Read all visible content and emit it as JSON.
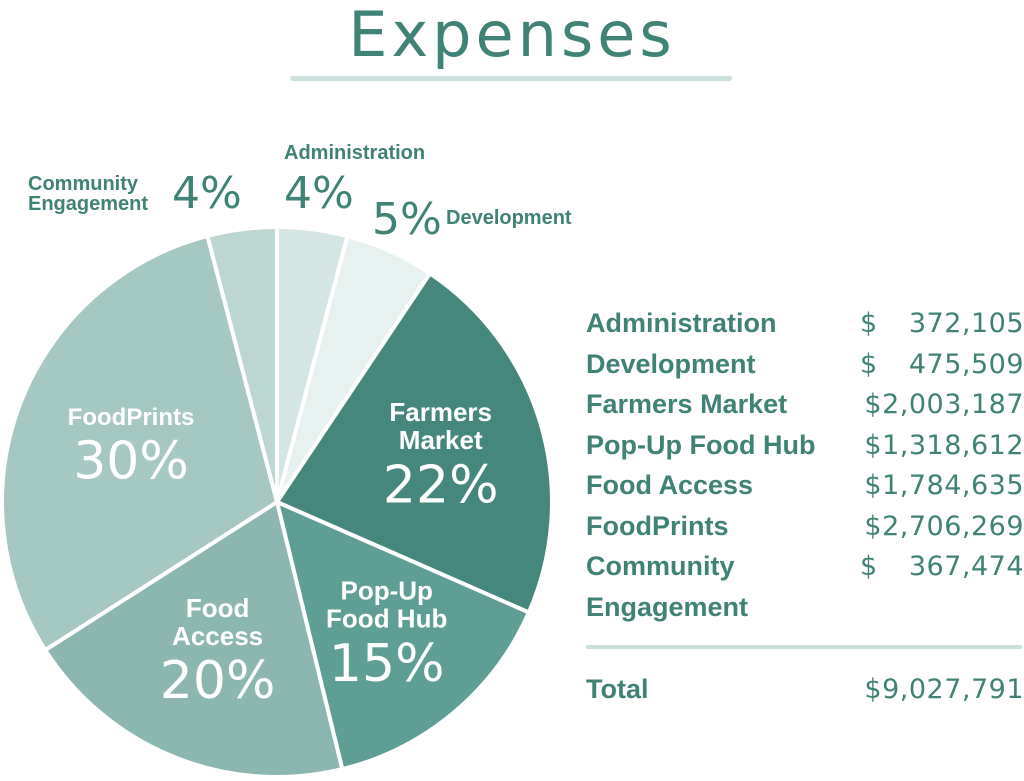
{
  "chart_data": {
    "type": "pie",
    "title": "Expenses",
    "slices": [
      {
        "name": "Administration",
        "label_lines": [
          "Administration"
        ],
        "pct_label": "4%",
        "amount": "$ 372,105",
        "amount_symbol": "$",
        "amount_number": "372,105",
        "value": 372105,
        "color": "#d4e6e3"
      },
      {
        "name": "Development",
        "label_lines": [
          "Development"
        ],
        "pct_label": "5%",
        "amount": "$ 475,509",
        "amount_symbol": "$",
        "amount_number": "475,509",
        "value": 475509,
        "color": "#e7f1ef"
      },
      {
        "name": "Farmers Market",
        "label_lines": [
          "Farmers",
          "Market"
        ],
        "pct_label": "22%",
        "amount": "$2,003,187",
        "value": 2003187,
        "color": "#46877d"
      },
      {
        "name": "Pop-Up Food Hub",
        "label_lines": [
          "Pop-Up",
          "Food Hub"
        ],
        "pct_label": "15%",
        "amount": "$1,318,612",
        "value": 1318612,
        "color": "#5e9e94"
      },
      {
        "name": "Food Access",
        "label_lines": [
          "Food",
          "Access"
        ],
        "pct_label": "20%",
        "amount": "$1,784,635",
        "value": 1784635,
        "color": "#8cb7b0"
      },
      {
        "name": "FoodPrints",
        "label_lines": [
          "FoodPrints"
        ],
        "pct_label": "30%",
        "amount": "$2,706,269",
        "value": 2706269,
        "color": "#a6c8c2"
      },
      {
        "name": "Community Engagement",
        "label_lines": [
          "Community",
          "Engagement"
        ],
        "pct_label": "4%",
        "amount": "$ 367,474",
        "amount_symbol": "$",
        "amount_number": "367,474",
        "value": 367474,
        "color": "#bcd6d2"
      }
    ],
    "total_label": "Total",
    "total_amount": "$9,027,791",
    "total_value": 9027791
  },
  "external_labels": {
    "community_line1": "Community",
    "community_line2": "Engagement",
    "community_pct": "4%",
    "administration_name": "Administration",
    "administration_pct": "4%",
    "development_pct": "5%",
    "development_name": "Development"
  },
  "legend": {
    "rows": [
      {
        "name": "Administration",
        "symbol": "$",
        "number": "372,105"
      },
      {
        "name": "Development",
        "symbol": "$",
        "number": "475,509"
      },
      {
        "name": "Farmers Market",
        "full": "$2,003,187"
      },
      {
        "name": "Pop-Up Food Hub",
        "full": "$1,318,612"
      },
      {
        "name": "Food Access",
        "full": "$1,784,635"
      },
      {
        "name": "FoodPrints",
        "full": "$2,706,269"
      },
      {
        "name": "Community",
        "symbol": "$",
        "number": "367,474"
      },
      {
        "name": "Engagement"
      }
    ],
    "total_label": "Total",
    "total_amount": "$9,027,791"
  }
}
